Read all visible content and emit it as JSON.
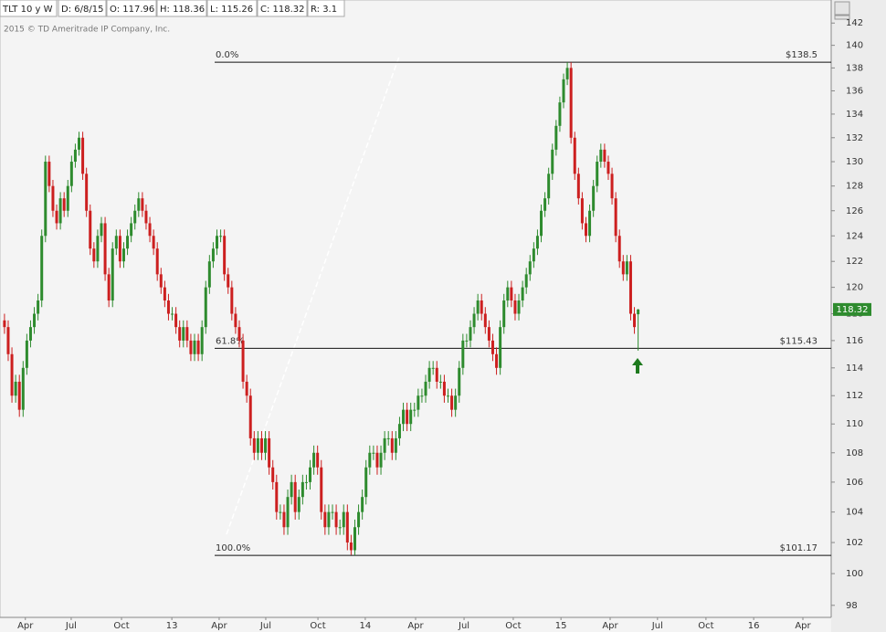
{
  "header": {
    "symbol": "TLT 10 y W",
    "date": "D: 6/8/15",
    "open": "O: 117.96",
    "high": "H: 118.36",
    "low": "L: 115.26",
    "close": "C: 118.32",
    "range": "R: 3.1",
    "copyright": "2015 © TD Ameritrade IP Company, Inc."
  },
  "chart_data": {
    "type": "candlestick",
    "up_color": "#2e8b2e",
    "down_color": "#cc1f1f",
    "log_scale": true,
    "x": [
      0,
      1,
      2,
      3,
      4,
      5,
      6,
      7,
      8,
      9,
      10,
      11,
      12,
      13,
      14,
      15,
      16,
      17,
      18,
      19,
      20,
      21,
      22,
      23,
      24,
      25,
      26,
      27,
      28,
      29,
      30,
      31,
      32,
      33,
      34,
      35,
      36,
      37,
      38,
      39,
      40,
      41,
      42,
      43,
      44,
      45,
      46,
      47,
      48,
      49,
      50,
      51,
      52,
      53,
      54,
      55,
      56,
      57,
      58,
      59,
      60,
      61,
      62,
      63,
      64,
      65,
      66,
      67,
      68,
      69,
      70,
      71,
      72,
      73,
      74,
      75,
      76,
      77,
      78,
      79,
      80,
      81,
      82,
      83,
      84,
      85,
      86,
      87,
      88,
      89,
      90,
      91,
      92,
      93,
      94,
      95,
      96,
      97,
      98,
      99,
      100,
      101,
      102,
      103,
      104,
      105,
      106,
      107,
      108,
      109,
      110,
      111,
      112,
      113,
      114,
      115,
      116,
      117,
      118,
      119,
      120,
      121,
      122,
      123,
      124,
      125,
      126,
      127,
      128,
      129,
      130,
      131,
      132,
      133,
      134,
      135,
      136,
      137,
      138,
      139,
      140,
      141,
      142,
      143,
      144,
      145,
      146,
      147,
      148,
      149,
      150,
      151,
      152,
      153,
      154,
      155,
      156,
      157,
      158,
      159,
      160,
      161,
      162,
      163,
      164,
      165,
      166,
      167,
      168,
      169,
      170
    ],
    "open": [
      117.5,
      117,
      115,
      112,
      113,
      111,
      114,
      116,
      117,
      118,
      119,
      124,
      130,
      128,
      126,
      125,
      127,
      126,
      128,
      130,
      131,
      132,
      129,
      126,
      123,
      122,
      124,
      125,
      121,
      119,
      123,
      124,
      122,
      123,
      124,
      125,
      126,
      127,
      126,
      125,
      124,
      123,
      121,
      120,
      119,
      118,
      118,
      117,
      116,
      117,
      116,
      115,
      116,
      115,
      117,
      120,
      122,
      123,
      124,
      124,
      121,
      120,
      118,
      117,
      116,
      113,
      112,
      109,
      108,
      109,
      108,
      109,
      107,
      106,
      104,
      104,
      103,
      105,
      106,
      104,
      105,
      106,
      106,
      107,
      108,
      107,
      104,
      103,
      104,
      104,
      103,
      103,
      104,
      102,
      101.5,
      103,
      104,
      105,
      107,
      108,
      108,
      107,
      108,
      109,
      109,
      108,
      109,
      110,
      111,
      110,
      111,
      111,
      112,
      112,
      113,
      114,
      114,
      113,
      113,
      112,
      112,
      111,
      112,
      114,
      116,
      116,
      117,
      118,
      119,
      118,
      117,
      116,
      115,
      114,
      117,
      119,
      120,
      119,
      118,
      119,
      120,
      121,
      122,
      123,
      124,
      126,
      127,
      129,
      131,
      133,
      135,
      137,
      138,
      132,
      129,
      127,
      125,
      124,
      126,
      128,
      130,
      131,
      130,
      129,
      127,
      124,
      122,
      121,
      122,
      118,
      117.96
    ],
    "high": [
      118,
      117.5,
      115.5,
      113.5,
      113.5,
      114.5,
      116.5,
      117.5,
      118.5,
      119.5,
      124.5,
      130.5,
      130.5,
      128.5,
      126.5,
      127.5,
      127.5,
      128.5,
      130.5,
      131.5,
      132.5,
      132.5,
      129.5,
      126.5,
      123.5,
      124.5,
      125.5,
      125.5,
      121.5,
      123.5,
      124.5,
      124.5,
      123.5,
      124.5,
      125.5,
      126.5,
      127.5,
      127.5,
      126.5,
      125.5,
      124.5,
      123.5,
      121.5,
      120.5,
      119.5,
      118.5,
      118.5,
      117.5,
      117.5,
      117.5,
      116.5,
      116.5,
      116.5,
      117.5,
      120.5,
      122.5,
      123.5,
      124.5,
      124.5,
      124.5,
      121.5,
      120.5,
      118.5,
      117.5,
      116.5,
      113.5,
      112.5,
      109.5,
      109.5,
      109.5,
      109.5,
      109.5,
      107.5,
      106.5,
      104.5,
      104.5,
      105.5,
      106.5,
      106.5,
      105.5,
      106.5,
      106.5,
      107.5,
      108.5,
      108.5,
      107.5,
      104.5,
      104.5,
      104.5,
      104.5,
      103.5,
      104.5,
      104.5,
      102.5,
      103.5,
      104.5,
      105.5,
      107.5,
      108.5,
      108.5,
      108.5,
      108.5,
      109.5,
      109.5,
      109.5,
      109.5,
      110.5,
      111.5,
      111.5,
      111.5,
      111.5,
      112.5,
      112.5,
      113.5,
      114.5,
      114.5,
      114.5,
      113.5,
      113.5,
      112.5,
      112.5,
      112.5,
      114.5,
      116.5,
      116.5,
      117.5,
      118.5,
      119.5,
      119.5,
      118.5,
      117.5,
      116.5,
      115.5,
      117.5,
      119.5,
      120.5,
      120.5,
      119.5,
      119.5,
      120.5,
      121.5,
      122.5,
      123.5,
      124.5,
      126.5,
      127.5,
      129.5,
      131.5,
      133.5,
      135.5,
      137.5,
      138.5,
      138.5,
      132.5,
      129.5,
      127.5,
      125.5,
      126.5,
      128.5,
      130.5,
      131.5,
      131.5,
      130.5,
      129.5,
      127.5,
      124.5,
      122.5,
      122.5,
      122.5,
      118.5,
      118.36
    ],
    "low": [
      116.5,
      114.5,
      111.5,
      111.5,
      110.5,
      110.5,
      113.5,
      115.5,
      116.5,
      117.5,
      118.5,
      123.5,
      127.5,
      125.5,
      124.5,
      124.5,
      125.5,
      125.5,
      127.5,
      129.5,
      130.5,
      128.5,
      125.5,
      122.5,
      121.5,
      121.5,
      123.5,
      120.5,
      118.5,
      118.5,
      122.5,
      121.5,
      121.5,
      122.5,
      123.5,
      124.5,
      125.5,
      125.5,
      124.5,
      123.5,
      122.5,
      120.5,
      119.5,
      118.5,
      117.5,
      117.5,
      116.5,
      115.5,
      115.5,
      115.5,
      114.5,
      114.5,
      114.5,
      114.5,
      116.5,
      119.5,
      121.5,
      122.5,
      123.5,
      120.5,
      119.5,
      117.5,
      116.5,
      115.5,
      112.5,
      111.5,
      108.5,
      107.5,
      107.5,
      107.5,
      107.5,
      106.5,
      105.5,
      103.5,
      103.5,
      102.5,
      102.5,
      104.5,
      103.5,
      103.5,
      104.5,
      105.5,
      105.5,
      106.5,
      106.5,
      103.5,
      102.5,
      102.5,
      103.5,
      102.5,
      102.5,
      102.5,
      101.5,
      101.2,
      101.17,
      102.5,
      103.5,
      104.5,
      106.5,
      107.5,
      106.5,
      106.5,
      107.5,
      108.5,
      107.5,
      107.5,
      108.5,
      109.5,
      109.5,
      109.5,
      110.5,
      110.5,
      111.5,
      111.5,
      112.5,
      113.5,
      112.5,
      112.5,
      111.5,
      111.5,
      110.5,
      110.5,
      111.5,
      113.5,
      115.5,
      115.5,
      116.5,
      117.5,
      117.5,
      116.5,
      115.5,
      114.5,
      113.5,
      113.5,
      116.5,
      118.5,
      118.5,
      117.5,
      117.5,
      118.5,
      119.5,
      120.5,
      121.5,
      122.5,
      123.5,
      125.5,
      126.5,
      128.5,
      130.5,
      132.5,
      134.5,
      136.5,
      131.5,
      128.5,
      126.5,
      124.5,
      123.5,
      123.5,
      125.5,
      127.5,
      129.5,
      129.5,
      128.5,
      126.5,
      123.5,
      121.5,
      120.5,
      120.5,
      117.5,
      116.5,
      115.26
    ],
    "close": [
      117,
      115,
      112,
      113,
      111,
      114,
      116,
      117,
      118,
      119,
      124,
      130,
      128,
      126,
      125,
      127,
      126,
      128,
      130,
      131,
      132,
      129,
      126,
      123,
      122,
      124,
      125,
      121,
      119,
      123,
      124,
      122,
      123,
      124,
      125,
      126,
      127,
      126,
      125,
      124,
      123,
      121,
      120,
      119,
      118,
      118,
      117,
      116,
      117,
      116,
      115,
      116,
      115,
      117,
      120,
      122,
      123,
      124,
      124,
      121,
      120,
      118,
      117,
      116,
      113,
      112,
      109,
      108,
      109,
      108,
      109,
      107,
      106,
      104,
      104,
      103,
      105,
      106,
      104,
      105,
      106,
      106,
      107,
      108,
      107,
      104,
      103,
      104,
      104,
      103,
      103,
      104,
      102,
      101.5,
      103,
      104,
      105,
      107,
      108,
      108,
      107,
      108,
      109,
      109,
      108,
      109,
      110,
      111,
      110,
      111,
      111,
      112,
      112,
      113,
      114,
      114,
      113,
      113,
      112,
      112,
      111,
      112,
      114,
      116,
      116,
      117,
      118,
      119,
      118,
      117,
      116,
      115,
      114,
      117,
      119,
      120,
      119,
      118,
      119,
      120,
      121,
      122,
      123,
      124,
      126,
      127,
      129,
      131,
      133,
      135,
      137,
      138,
      132,
      129,
      127,
      125,
      124,
      126,
      128,
      130,
      131,
      130,
      129,
      127,
      124,
      122,
      121,
      122,
      118,
      117,
      118.32
    ],
    "xlim": [
      -1.2,
      221.8
    ],
    "xticks": [
      {
        "value": 5.6,
        "label": "Apr"
      },
      {
        "value": 17.9,
        "label": "Jul"
      },
      {
        "value": 31.4,
        "label": "Oct"
      },
      {
        "value": 44.9,
        "label": "13"
      },
      {
        "value": 57.6,
        "label": "Apr"
      },
      {
        "value": 70.1,
        "label": "Jul"
      },
      {
        "value": 84.1,
        "label": "Oct"
      },
      {
        "value": 96.8,
        "label": "14"
      },
      {
        "value": 110.3,
        "label": "Apr"
      },
      {
        "value": 123.3,
        "label": "Jul"
      },
      {
        "value": 136.5,
        "label": "Oct"
      },
      {
        "value": 149.3,
        "label": "15"
      },
      {
        "value": 162.5,
        "label": "Apr"
      },
      {
        "value": 175.2,
        "label": "Jul"
      },
      {
        "value": 188.2,
        "label": "Oct"
      },
      {
        "value": 201,
        "label": "16"
      },
      {
        "value": 214.2,
        "label": "Apr"
      }
    ],
    "ylim": [
      97.25,
      144.1
    ],
    "yticks": [
      98,
      100,
      102,
      104,
      106,
      108,
      110,
      112,
      114,
      116,
      118,
      120,
      122,
      124,
      126,
      128,
      130,
      132,
      134,
      136,
      138,
      140,
      142
    ],
    "fib_levels": [
      {
        "value": 138.5,
        "label": "0.0%",
        "price_label": "$138.5"
      },
      {
        "value": 115.43,
        "label": "61.8%",
        "price_label": "$115.43"
      },
      {
        "value": 101.17,
        "label": "100.0%",
        "price_label": "$101.17"
      }
    ]
  }
}
